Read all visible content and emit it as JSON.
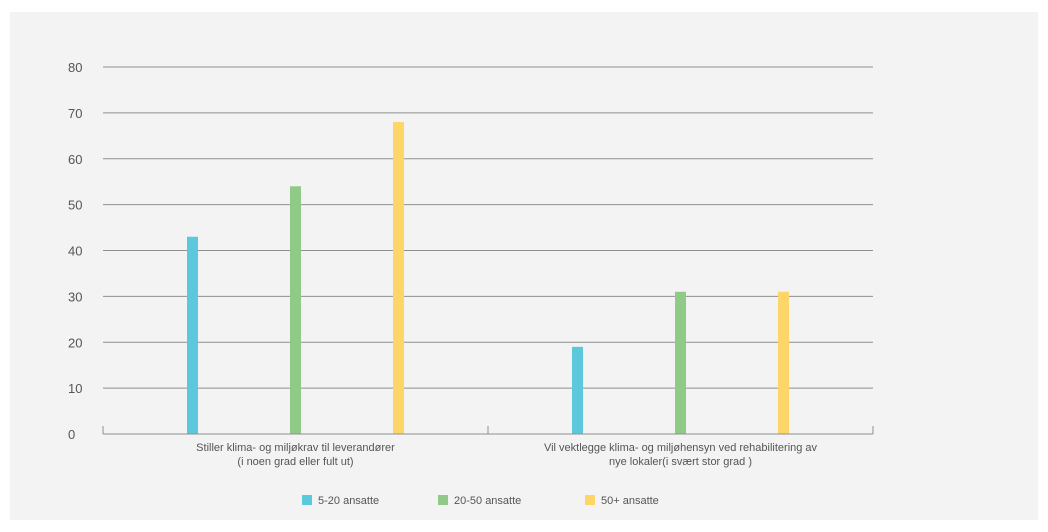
{
  "chart_data": {
    "type": "bar",
    "title": "",
    "xlabel": "",
    "ylabel": "",
    "ylim": [
      0,
      80
    ],
    "yticks": [
      0,
      10,
      20,
      30,
      40,
      50,
      60,
      70,
      80
    ],
    "grid": true,
    "legend_position": "bottom",
    "categories": [
      [
        "Stiller klima- og miljøkrav til leverandører",
        "(i noen grad eller fult ut)"
      ],
      [
        "Vil vektlegge klima- og miljøhensyn ved rehabilitering av",
        "nye lokaler(i svært stor grad )"
      ]
    ],
    "series": [
      {
        "name": "5-20 ansatte",
        "color": "#5bc8dc",
        "values": [
          43,
          19
        ]
      },
      {
        "name": "20-50 ansatte",
        "color": "#8fcb86",
        "values": [
          54,
          31
        ]
      },
      {
        "name": "50+ ansatte",
        "color": "#fed567",
        "values": [
          68,
          31
        ]
      }
    ]
  }
}
